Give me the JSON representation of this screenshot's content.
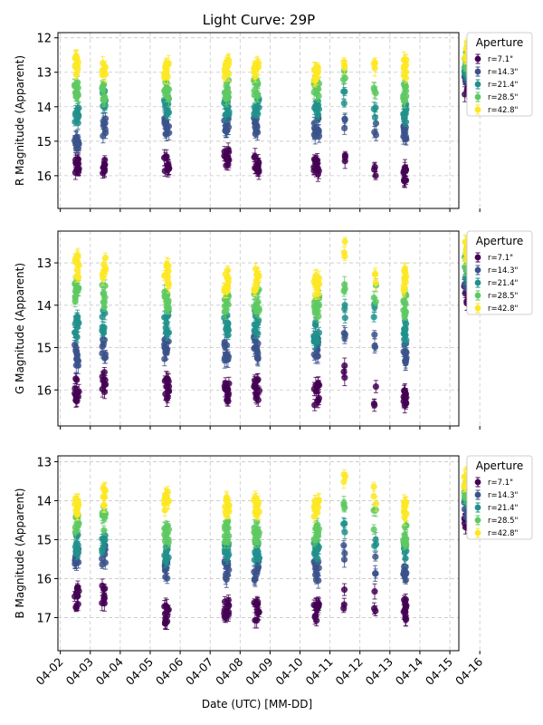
{
  "figure_title": "Light Curve: 29P",
  "chart_data": {
    "type": "scatter",
    "title": "Light Curve: 29P",
    "xlabel": "Date (UTC) [MM-DD]",
    "x_ticks": [
      "04-02",
      "04-03",
      "04-04",
      "04-05",
      "04-06",
      "04-07",
      "04-08",
      "04-09",
      "04-10",
      "04-11",
      "04-12",
      "04-13",
      "04-14",
      "04-15",
      "04-16"
    ],
    "xlim": [
      1.92,
      15.3
    ],
    "grid": true,
    "legend_title": "Aperture",
    "legend_placement": "outside-right",
    "apertures": [
      {
        "label": "r=7.1\"",
        "color": "#440154"
      },
      {
        "label": "r=14.3\"",
        "color": "#3b528b"
      },
      {
        "label": "r=21.4\"",
        "color": "#21918c"
      },
      {
        "label": "r=28.5\"",
        "color": "#5ec962"
      },
      {
        "label": "r=42.8\"",
        "color": "#fde725"
      }
    ],
    "epochs": [
      {
        "x": 2.55,
        "w": 0.14
      },
      {
        "x": 3.45,
        "w": 0.12
      },
      {
        "x": 5.55,
        "w": 0.16
      },
      {
        "x": 7.55,
        "w": 0.16
      },
      {
        "x": 8.55,
        "w": 0.18
      },
      {
        "x": 10.55,
        "w": 0.18
      },
      {
        "x": 11.48,
        "w": 0.06
      },
      {
        "x": 12.5,
        "w": 0.08
      },
      {
        "x": 13.5,
        "w": 0.1
      },
      {
        "x": 15.55,
        "w": 0.14
      }
    ],
    "panels": [
      {
        "ylabel": "R Magnitude (Apparent)",
        "ylim": [
          16.95,
          11.85
        ],
        "yticks": [
          12,
          13,
          14,
          15,
          16
        ],
        "series_by_epoch": [
          [
            15.7,
            15.1,
            14.2,
            13.5,
            12.8
          ],
          [
            15.8,
            14.6,
            13.8,
            13.6,
            12.9
          ],
          [
            15.7,
            14.6,
            14.0,
            13.5,
            12.9
          ],
          [
            15.5,
            14.5,
            14.0,
            13.5,
            12.9
          ],
          [
            15.7,
            14.6,
            14.0,
            13.5,
            12.9
          ],
          [
            15.7,
            14.6,
            14.0,
            13.5,
            13.0
          ],
          [
            15.5,
            14.4,
            13.7,
            13.2,
            12.6
          ],
          [
            15.9,
            14.6,
            14.1,
            13.4,
            12.8
          ],
          [
            15.9,
            14.8,
            14.2,
            13.6,
            12.9
          ],
          [
            13.4,
            13.0,
            12.8,
            12.7,
            12.4
          ]
        ]
      },
      {
        "ylabel": "G Magnitude (Apparent)",
        "ylim": [
          16.85,
          12.25
        ],
        "yticks": [
          13,
          14,
          15,
          16
        ],
        "series_by_epoch": [
          [
            16.0,
            15.2,
            14.5,
            13.7,
            13.1
          ],
          [
            15.8,
            15.0,
            14.4,
            13.8,
            13.1
          ],
          [
            16.0,
            15.0,
            14.4,
            13.9,
            13.3
          ],
          [
            16.0,
            15.1,
            14.5,
            14.0,
            13.4
          ],
          [
            16.0,
            15.0,
            14.4,
            13.9,
            13.4
          ],
          [
            16.1,
            15.0,
            14.6,
            14.0,
            13.5
          ],
          [
            15.7,
            14.5,
            14.1,
            13.4,
            12.7
          ],
          [
            16.1,
            14.8,
            14.2,
            13.7,
            13.3
          ],
          [
            16.1,
            15.1,
            14.6,
            14.0,
            13.4
          ],
          [
            13.7,
            13.3,
            13.1,
            12.9,
            12.7
          ]
        ]
      },
      {
        "ylabel": "B Magnitude (Apparent)",
        "ylim": [
          17.85,
          12.85
        ],
        "yticks": [
          13,
          14,
          15,
          16,
          17
        ],
        "series_by_epoch": [
          [
            16.5,
            15.5,
            15.1,
            14.6,
            14.1
          ],
          [
            16.4,
            15.4,
            15.1,
            14.5,
            13.9
          ],
          [
            16.9,
            15.8,
            15.3,
            14.8,
            14.0
          ],
          [
            16.8,
            15.8,
            15.3,
            14.8,
            14.1
          ],
          [
            16.8,
            15.8,
            15.3,
            14.8,
            14.1
          ],
          [
            16.9,
            15.8,
            15.3,
            14.8,
            14.2
          ],
          [
            16.5,
            15.3,
            14.8,
            14.3,
            13.6
          ],
          [
            16.6,
            15.6,
            15.1,
            14.5,
            13.9
          ],
          [
            16.8,
            15.8,
            15.3,
            14.9,
            14.3
          ],
          [
            14.6,
            14.2,
            13.9,
            13.7,
            13.4
          ]
        ]
      }
    ]
  }
}
